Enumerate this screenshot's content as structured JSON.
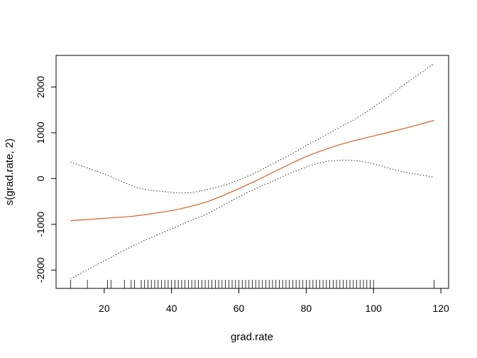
{
  "chart_data": {
    "type": "line",
    "title": "",
    "xlabel": "grad.rate",
    "ylabel": "s(grad.rate, 2)",
    "xlim": [
      5.7,
      122.3
    ],
    "ylim": [
      -2400,
      2690
    ],
    "xticks": [
      20,
      40,
      60,
      80,
      100,
      120
    ],
    "yticks": [
      -2000,
      -1000,
      0,
      1000,
      2000
    ],
    "grid": false,
    "legend": "none",
    "colors": {
      "fit": "#d95f1e",
      "band": "#000000",
      "rug": "#000000",
      "frame": "#000000"
    },
    "series": [
      {
        "role": "fit",
        "style": "solid",
        "x": [
          10,
          20,
          30,
          40,
          45,
          50,
          55,
          60,
          65,
          70,
          75,
          80,
          85,
          90,
          95,
          100,
          105,
          110,
          118
        ],
        "y": [
          -920,
          -870,
          -810,
          -700,
          -620,
          -520,
          -380,
          -220,
          -50,
          130,
          310,
          480,
          620,
          740,
          840,
          930,
          1020,
          1110,
          1270
        ]
      },
      {
        "role": "upper-band",
        "style": "dotted",
        "x": [
          10,
          20,
          30,
          40,
          45,
          50,
          55,
          60,
          65,
          70,
          75,
          80,
          85,
          90,
          95,
          100,
          105,
          110,
          118
        ],
        "y": [
          360,
          100,
          -200,
          -300,
          -310,
          -250,
          -160,
          -30,
          130,
          320,
          510,
          720,
          920,
          1120,
          1320,
          1560,
          1820,
          2100,
          2510
        ]
      },
      {
        "role": "lower-band",
        "style": "dotted",
        "x": [
          10,
          20,
          30,
          40,
          45,
          50,
          55,
          60,
          65,
          70,
          75,
          80,
          85,
          90,
          95,
          100,
          105,
          110,
          118
        ],
        "y": [
          -2190,
          -1800,
          -1420,
          -1100,
          -940,
          -790,
          -600,
          -400,
          -220,
          -60,
          110,
          250,
          360,
          400,
          390,
          320,
          220,
          130,
          30
        ]
      }
    ],
    "rug": [
      10,
      15,
      21,
      22,
      26,
      28,
      29,
      31,
      32,
      33,
      34,
      35,
      36,
      37,
      38,
      39,
      40,
      41,
      42,
      43,
      44,
      45,
      46,
      47,
      48,
      49,
      50,
      51,
      52,
      53,
      54,
      55,
      56,
      57,
      58,
      59,
      60,
      61,
      62,
      63,
      64,
      65,
      66,
      67,
      68,
      69,
      70,
      71,
      72,
      73,
      74,
      75,
      76,
      77,
      78,
      79,
      80,
      81,
      82,
      83,
      84,
      85,
      86,
      87,
      88,
      89,
      90,
      91,
      92,
      93,
      94,
      95,
      96,
      97,
      98,
      99,
      100,
      118
    ]
  }
}
